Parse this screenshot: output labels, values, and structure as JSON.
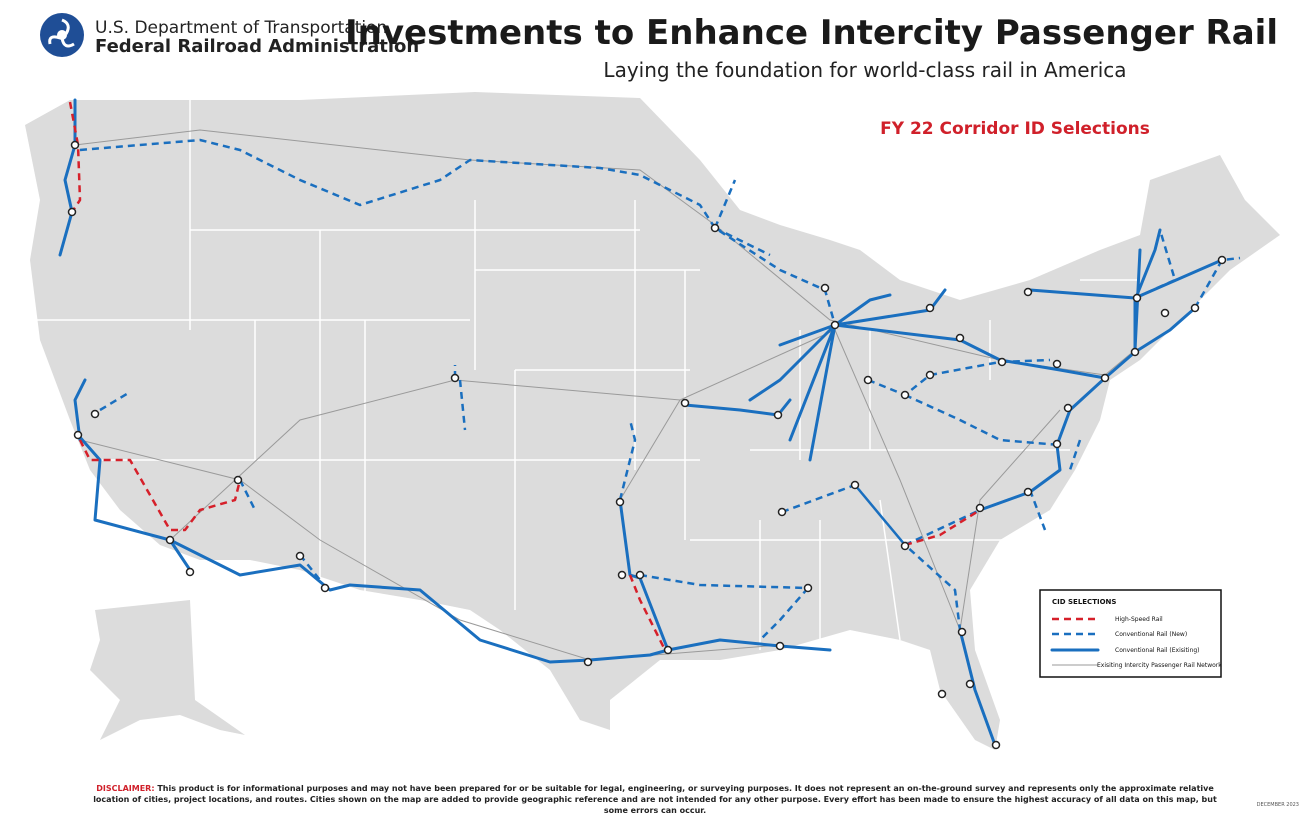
{
  "header": {
    "agency": "U.S. Department of Transportation",
    "administration": "Federal Railroad Administration",
    "title": "Investments to Enhance Intercity Passenger Rail",
    "subtitle": "Laying the foundation for world-class rail in America"
  },
  "map": {
    "label": "FY 22 Corridor ID Selections"
  },
  "legend": {
    "title": "CID SELECTIONS",
    "items": [
      "High-Speed Rail",
      "Conventional Rail (New)",
      "Conventional Rail (Exisiting)",
      "Exisiting Intercity Passenger Rail Network"
    ]
  },
  "disclaimer": {
    "label": "DISCLAIMER:",
    "text": "This product is for informational purposes and may not have been prepared for or be suitable for legal, engineering, or surveying purposes. It does not represent an on-the-ground survey and represents only the approximate relative location of cities, project locations, and routes. Cities shown on the map are added to provide geographic reference and are not intended for any other purpose. Every effort has been made to ensure the highest accuracy of all data on this map, but some errors can occur."
  },
  "date": "DECEMBER 2023"
}
